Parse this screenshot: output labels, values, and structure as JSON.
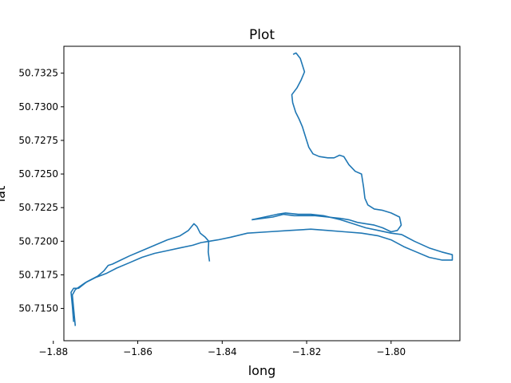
{
  "chart_data": {
    "type": "line",
    "title": "Plot",
    "xlabel": "long",
    "ylabel": "lat",
    "xlim": [
      -1.8775,
      -1.7837
    ],
    "ylim": [
      50.7126,
      50.7345
    ],
    "xticks": [
      -1.88,
      -1.86,
      -1.84,
      -1.82,
      -1.8
    ],
    "xtick_labels": [
      "−1.88",
      "−1.86",
      "−1.84",
      "−1.82",
      "−1.80"
    ],
    "yticks": [
      50.715,
      50.7175,
      50.72,
      50.7225,
      50.725,
      50.7275,
      50.73,
      50.7325
    ],
    "ytick_labels": [
      "50.7150",
      "50.7175",
      "50.7200",
      "50.7225",
      "50.7250",
      "50.7275",
      "50.7300",
      "50.7325"
    ],
    "grid": false,
    "line_color": "#1f77b4",
    "series": [
      {
        "name": "",
        "points": [
          [
            -1.8232,
            50.7339
          ],
          [
            -1.8225,
            50.734
          ],
          [
            -1.8215,
            50.7336
          ],
          [
            -1.8205,
            50.7326
          ],
          [
            -1.8213,
            50.732
          ],
          [
            -1.8223,
            50.7314
          ],
          [
            -1.8235,
            50.7309
          ],
          [
            -1.8233,
            50.7303
          ],
          [
            -1.8226,
            50.7296
          ],
          [
            -1.8218,
            50.7291
          ],
          [
            -1.821,
            50.7285
          ],
          [
            -1.8202,
            50.7277
          ],
          [
            -1.8195,
            50.727
          ],
          [
            -1.8185,
            50.7265
          ],
          [
            -1.817,
            50.7263
          ],
          [
            -1.815,
            50.7262
          ],
          [
            -1.8135,
            50.7262
          ],
          [
            -1.8122,
            50.7264
          ],
          [
            -1.8112,
            50.7263
          ],
          [
            -1.81,
            50.7257
          ],
          [
            -1.8085,
            50.7252
          ],
          [
            -1.807,
            50.725
          ],
          [
            -1.8065,
            50.724
          ],
          [
            -1.8062,
            50.7232
          ],
          [
            -1.8055,
            50.7227
          ],
          [
            -1.804,
            50.7224
          ],
          [
            -1.802,
            50.7223
          ],
          [
            -1.8,
            50.7221
          ],
          [
            -1.798,
            50.7218
          ],
          [
            -1.7976,
            50.7212
          ],
          [
            -1.7985,
            50.7208
          ],
          [
            -1.8,
            50.7207
          ],
          [
            -1.802,
            50.721
          ],
          [
            -1.804,
            50.7212
          ],
          [
            -1.806,
            50.7213
          ],
          [
            -1.808,
            50.7214
          ],
          [
            -1.81,
            50.7216
          ],
          [
            -1.812,
            50.7217
          ],
          [
            -1.815,
            50.7218
          ],
          [
            -1.818,
            50.7219
          ],
          [
            -1.82,
            50.7219
          ],
          [
            -1.823,
            50.7219
          ],
          [
            -1.8255,
            50.722
          ],
          [
            -1.828,
            50.7218
          ],
          [
            -1.8305,
            50.7217
          ],
          [
            -1.833,
            50.7216
          ]
        ]
      },
      {
        "name": "",
        "points": [
          [
            -1.833,
            50.7216
          ],
          [
            -1.83,
            50.7218
          ],
          [
            -1.827,
            50.722
          ],
          [
            -1.825,
            50.7221
          ],
          [
            -1.822,
            50.722
          ],
          [
            -1.819,
            50.722
          ],
          [
            -1.816,
            50.7219
          ],
          [
            -1.812,
            50.7216
          ],
          [
            -1.809,
            50.7213
          ],
          [
            -1.806,
            50.721
          ],
          [
            -1.803,
            50.7208
          ],
          [
            -1.8,
            50.7206
          ],
          [
            -1.7975,
            50.7205
          ],
          [
            -1.7945,
            50.72
          ],
          [
            -1.791,
            50.7195
          ],
          [
            -1.788,
            50.7192
          ],
          [
            -1.7855,
            50.719
          ],
          [
            -1.7855,
            50.7186
          ],
          [
            -1.788,
            50.7186
          ],
          [
            -1.791,
            50.7188
          ],
          [
            -1.794,
            50.7192
          ],
          [
            -1.797,
            50.7196
          ],
          [
            -1.8,
            50.7201
          ],
          [
            -1.803,
            50.7204
          ],
          [
            -1.807,
            50.7206
          ],
          [
            -1.811,
            50.7207
          ],
          [
            -1.815,
            50.7208
          ],
          [
            -1.819,
            50.7209
          ],
          [
            -1.824,
            50.7208
          ],
          [
            -1.829,
            50.7207
          ],
          [
            -1.834,
            50.7206
          ],
          [
            -1.838,
            50.7203
          ],
          [
            -1.841,
            50.7201
          ],
          [
            -1.843,
            50.72
          ],
          [
            -1.845,
            50.7199
          ],
          [
            -1.847,
            50.7197
          ],
          [
            -1.85,
            50.7195
          ],
          [
            -1.853,
            50.7193
          ],
          [
            -1.856,
            50.7191
          ],
          [
            -1.859,
            50.7188
          ],
          [
            -1.862,
            50.7184
          ],
          [
            -1.865,
            50.718
          ],
          [
            -1.8675,
            50.7176
          ],
          [
            -1.87,
            50.7173
          ],
          [
            -1.8725,
            50.7169
          ],
          [
            -1.8748,
            50.7164
          ],
          [
            -1.8755,
            50.716
          ],
          [
            -1.8752,
            50.715
          ],
          [
            -1.8748,
            50.7137
          ]
        ]
      },
      {
        "name": "",
        "points": [
          [
            -1.8752,
            50.714
          ],
          [
            -1.8755,
            50.7152
          ],
          [
            -1.8758,
            50.7162
          ],
          [
            -1.8752,
            50.7165
          ],
          [
            -1.874,
            50.7165
          ],
          [
            -1.872,
            50.717
          ],
          [
            -1.8695,
            50.7174
          ],
          [
            -1.868,
            50.7178
          ],
          [
            -1.867,
            50.7182
          ],
          [
            -1.866,
            50.7183
          ],
          [
            -1.864,
            50.7186
          ],
          [
            -1.862,
            50.7189
          ],
          [
            -1.859,
            50.7193
          ],
          [
            -1.856,
            50.7197
          ],
          [
            -1.853,
            50.7201
          ],
          [
            -1.85,
            50.7204
          ],
          [
            -1.848,
            50.7208
          ],
          [
            -1.8467,
            50.7213
          ],
          [
            -1.846,
            50.7211
          ],
          [
            -1.8452,
            50.7206
          ],
          [
            -1.844,
            50.7203
          ],
          [
            -1.8432,
            50.72
          ],
          [
            -1.8433,
            50.7192
          ],
          [
            -1.843,
            50.7185
          ]
        ]
      }
    ]
  }
}
